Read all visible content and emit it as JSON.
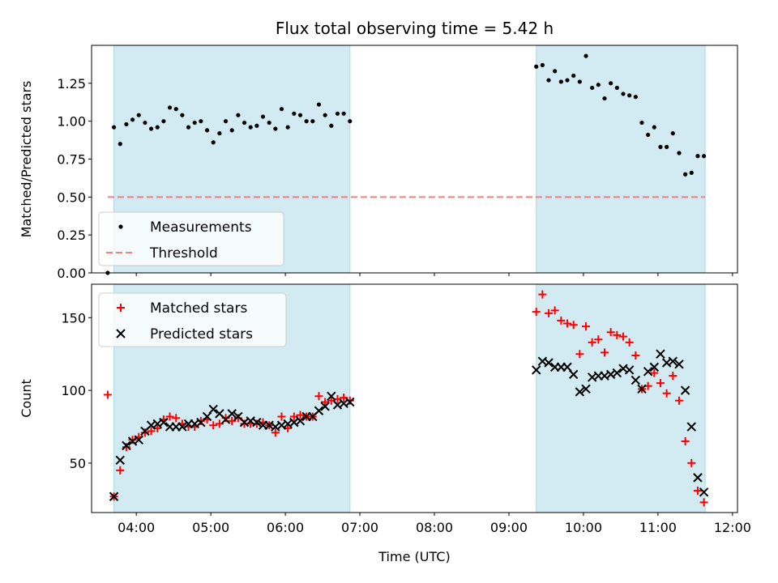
{
  "chart_data": [
    {
      "type": "scatter",
      "title": "Flux total observing time = 5.42 h",
      "xlabel": "",
      "ylabel": "Matched/Predicted stars",
      "xlim": [
        "03:24",
        "12:04"
      ],
      "ylim": [
        0,
        1.5
      ],
      "y_ticks": [
        0.0,
        0.25,
        0.5,
        0.75,
        1.0,
        1.25
      ],
      "y_tick_labels": [
        "0.00",
        "0.25",
        "0.50",
        "0.75",
        "1.00",
        "1.25"
      ],
      "x_ticks": [
        "04:00",
        "05:00",
        "06:00",
        "07:00",
        "08:00",
        "09:00",
        "10:00",
        "11:00",
        "12:00"
      ],
      "shaded_intervals": [
        [
          "03:42",
          "06:52"
        ],
        [
          "09:22",
          "11:38"
        ]
      ],
      "shade_color": "#add8e6",
      "threshold": {
        "name": "Threshold",
        "value": 0.5,
        "x": [
          "03:37",
          "11:38"
        ],
        "color": "#f08080"
      },
      "series": [
        {
          "name": "Measurements",
          "color": "#000000",
          "points": [
            [
              "03:37",
              0.0
            ],
            [
              "03:42",
              0.96
            ],
            [
              "03:47",
              0.85
            ],
            [
              "03:52",
              0.98
            ],
            [
              "03:57",
              1.01
            ],
            [
              "04:02",
              1.04
            ],
            [
              "04:07",
              0.99
            ],
            [
              "04:12",
              0.95
            ],
            [
              "04:17",
              0.96
            ],
            [
              "04:22",
              1.0
            ],
            [
              "04:27",
              1.09
            ],
            [
              "04:32",
              1.08
            ],
            [
              "04:37",
              1.04
            ],
            [
              "04:42",
              0.96
            ],
            [
              "04:47",
              0.99
            ],
            [
              "04:52",
              1.0
            ],
            [
              "04:57",
              0.94
            ],
            [
              "05:02",
              0.86
            ],
            [
              "05:07",
              0.92
            ],
            [
              "05:12",
              1.0
            ],
            [
              "05:17",
              0.94
            ],
            [
              "05:22",
              1.04
            ],
            [
              "05:27",
              0.99
            ],
            [
              "05:32",
              0.96
            ],
            [
              "05:37",
              0.97
            ],
            [
              "05:42",
              1.03
            ],
            [
              "05:47",
              0.99
            ],
            [
              "05:52",
              0.95
            ],
            [
              "05:57",
              1.08
            ],
            [
              "06:02",
              0.96
            ],
            [
              "06:07",
              1.05
            ],
            [
              "06:12",
              1.04
            ],
            [
              "06:17",
              1.0
            ],
            [
              "06:22",
              1.0
            ],
            [
              "06:27",
              1.11
            ],
            [
              "06:32",
              1.04
            ],
            [
              "06:37",
              0.97
            ],
            [
              "06:42",
              1.05
            ],
            [
              "06:47",
              1.05
            ],
            [
              "06:52",
              1.0
            ],
            [
              "09:22",
              1.36
            ],
            [
              "09:27",
              1.37
            ],
            [
              "09:32",
              1.27
            ],
            [
              "09:37",
              1.33
            ],
            [
              "09:42",
              1.26
            ],
            [
              "09:47",
              1.27
            ],
            [
              "09:52",
              1.3
            ],
            [
              "09:57",
              1.26
            ],
            [
              "10:02",
              1.43
            ],
            [
              "10:07",
              1.22
            ],
            [
              "10:12",
              1.24
            ],
            [
              "10:17",
              1.15
            ],
            [
              "10:22",
              1.25
            ],
            [
              "10:27",
              1.22
            ],
            [
              "10:32",
              1.18
            ],
            [
              "10:37",
              1.17
            ],
            [
              "10:42",
              1.16
            ],
            [
              "10:47",
              0.99
            ],
            [
              "10:52",
              0.91
            ],
            [
              "10:57",
              0.96
            ],
            [
              "11:02",
              0.83
            ],
            [
              "11:07",
              0.83
            ],
            [
              "11:12",
              0.92
            ],
            [
              "11:17",
              0.79
            ],
            [
              "11:22",
              0.65
            ],
            [
              "11:27",
              0.66
            ],
            [
              "11:32",
              0.77
            ],
            [
              "11:37",
              0.77
            ]
          ]
        }
      ],
      "legend": {
        "position": "lower-left",
        "entries": [
          "Measurements",
          "Threshold"
        ]
      },
      "grid": false
    },
    {
      "type": "scatter",
      "xlabel": "Time (UTC)",
      "ylabel": "Count",
      "xlim": [
        "03:24",
        "12:04"
      ],
      "ylim": [
        16,
        173
      ],
      "y_ticks": [
        50,
        100,
        150
      ],
      "y_tick_labels": [
        "50",
        "100",
        "150"
      ],
      "x_ticks": [
        "04:00",
        "05:00",
        "06:00",
        "07:00",
        "08:00",
        "09:00",
        "10:00",
        "11:00",
        "12:00"
      ],
      "x_tick_labels": [
        "04:00",
        "05:00",
        "06:00",
        "07:00",
        "08:00",
        "09:00",
        "10:00",
        "11:00",
        "12:00"
      ],
      "shaded_intervals": [
        [
          "03:42",
          "06:52"
        ],
        [
          "09:22",
          "11:38"
        ]
      ],
      "shade_color": "#add8e6",
      "series": [
        {
          "name": "Matched stars",
          "marker": "plus",
          "color": "#ff0000",
          "points": [
            [
              "03:37",
              97
            ],
            [
              "03:42",
              27
            ],
            [
              "03:47",
              45
            ],
            [
              "03:52",
              61
            ],
            [
              "03:57",
              66
            ],
            [
              "04:02",
              68
            ],
            [
              "04:07",
              71
            ],
            [
              "04:12",
              72
            ],
            [
              "04:17",
              74
            ],
            [
              "04:22",
              80
            ],
            [
              "04:27",
              82
            ],
            [
              "04:32",
              81
            ],
            [
              "04:37",
              77
            ],
            [
              "04:42",
              75
            ],
            [
              "04:47",
              75
            ],
            [
              "04:52",
              79
            ],
            [
              "04:57",
              80
            ],
            [
              "05:02",
              76
            ],
            [
              "05:07",
              77
            ],
            [
              "05:12",
              81
            ],
            [
              "05:17",
              79
            ],
            [
              "05:22",
              81
            ],
            [
              "05:27",
              77
            ],
            [
              "05:32",
              77
            ],
            [
              "05:37",
              77
            ],
            [
              "05:42",
              78
            ],
            [
              "05:47",
              76
            ],
            [
              "05:52",
              71
            ],
            [
              "05:57",
              82
            ],
            [
              "06:02",
              74
            ],
            [
              "06:07",
              82
            ],
            [
              "06:12",
              83
            ],
            [
              "06:17",
              82
            ],
            [
              "06:22",
              82
            ],
            [
              "06:27",
              96
            ],
            [
              "06:32",
              92
            ],
            [
              "06:37",
              93
            ],
            [
              "06:42",
              94
            ],
            [
              "06:47",
              95
            ],
            [
              "06:52",
              93
            ],
            [
              "09:22",
              154
            ],
            [
              "09:27",
              166
            ],
            [
              "09:32",
              153
            ],
            [
              "09:37",
              155
            ],
            [
              "09:42",
              148
            ],
            [
              "09:47",
              146
            ],
            [
              "09:52",
              145
            ],
            [
              "09:57",
              125
            ],
            [
              "10:02",
              144
            ],
            [
              "10:07",
              133
            ],
            [
              "10:12",
              135
            ],
            [
              "10:17",
              126
            ],
            [
              "10:22",
              140
            ],
            [
              "10:27",
              138
            ],
            [
              "10:32",
              137
            ],
            [
              "10:37",
              133
            ],
            [
              "10:42",
              124
            ],
            [
              "10:47",
              101
            ],
            [
              "10:52",
              103
            ],
            [
              "10:57",
              112
            ],
            [
              "11:02",
              105
            ],
            [
              "11:07",
              98
            ],
            [
              "11:12",
              110
            ],
            [
              "11:17",
              93
            ],
            [
              "11:22",
              65
            ],
            [
              "11:27",
              50
            ],
            [
              "11:32",
              31
            ],
            [
              "11:37",
              23
            ]
          ]
        },
        {
          "name": "Predicted stars",
          "marker": "x",
          "color": "#000000",
          "points": [
            [
              "03:42",
              27
            ],
            [
              "03:47",
              52
            ],
            [
              "03:52",
              62
            ],
            [
              "03:57",
              65
            ],
            [
              "04:02",
              66
            ],
            [
              "04:07",
              72
            ],
            [
              "04:12",
              76
            ],
            [
              "04:17",
              77
            ],
            [
              "04:22",
              78
            ],
            [
              "04:27",
              75
            ],
            [
              "04:32",
              75
            ],
            [
              "04:37",
              75
            ],
            [
              "04:42",
              77
            ],
            [
              "04:47",
              77
            ],
            [
              "04:52",
              78
            ],
            [
              "04:57",
              82
            ],
            [
              "05:02",
              87
            ],
            [
              "05:07",
              84
            ],
            [
              "05:12",
              80
            ],
            [
              "05:17",
              84
            ],
            [
              "05:22",
              82
            ],
            [
              "05:27",
              78
            ],
            [
              "05:32",
              79
            ],
            [
              "05:37",
              78
            ],
            [
              "05:42",
              76
            ],
            [
              "05:47",
              76
            ],
            [
              "05:52",
              75
            ],
            [
              "05:57",
              76
            ],
            [
              "06:02",
              77
            ],
            [
              "06:07",
              78
            ],
            [
              "06:12",
              79
            ],
            [
              "06:17",
              82
            ],
            [
              "06:22",
              82
            ],
            [
              "06:27",
              86
            ],
            [
              "06:32",
              89
            ],
            [
              "06:37",
              96
            ],
            [
              "06:42",
              90
            ],
            [
              "06:47",
              91
            ],
            [
              "06:52",
              92
            ],
            [
              "09:22",
              114
            ],
            [
              "09:27",
              120
            ],
            [
              "09:32",
              119
            ],
            [
              "09:37",
              116
            ],
            [
              "09:42",
              116
            ],
            [
              "09:47",
              116
            ],
            [
              "09:52",
              111
            ],
            [
              "09:57",
              99
            ],
            [
              "10:02",
              101
            ],
            [
              "10:07",
              109
            ],
            [
              "10:12",
              110
            ],
            [
              "10:17",
              110
            ],
            [
              "10:22",
              111
            ],
            [
              "10:27",
              112
            ],
            [
              "10:32",
              115
            ],
            [
              "10:37",
              114
            ],
            [
              "10:42",
              107
            ],
            [
              "10:47",
              101
            ],
            [
              "10:52",
              113
            ],
            [
              "10:57",
              116
            ],
            [
              "11:02",
              125
            ],
            [
              "11:07",
              119
            ],
            [
              "11:12",
              120
            ],
            [
              "11:17",
              118
            ],
            [
              "11:22",
              100
            ],
            [
              "11:27",
              75
            ],
            [
              "11:32",
              40
            ],
            [
              "11:37",
              30
            ]
          ]
        }
      ],
      "legend": {
        "position": "top-left",
        "entries": [
          "Matched stars",
          "Predicted stars"
        ]
      },
      "grid": false
    }
  ]
}
